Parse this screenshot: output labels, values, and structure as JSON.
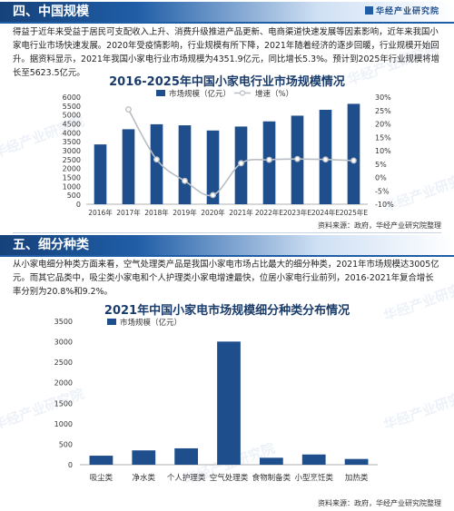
{
  "section4": {
    "title": "四、中国规模",
    "brand": "华经产业研究院",
    "paragraph": "得益于近年来受益于居民可支配收入上升、消费升级推进产品更新、电商渠道快速发展等因素影响，近年来我国小家电行业市场快速发展。2020年受疫情影响，行业规模有所下降，2021年随着经济的逐步回暖，行业规模开始回升。据资料显示，2021年我国小家电行业市场规模为4351.9亿元，同比增长5.3%。预计到2025年行业规模将增长至5623.5亿元。"
  },
  "section5": {
    "title": "五、细分种类",
    "paragraph": "从小家电细分种类方面来看，空气处理类产品是我国小家电市场占比最大的细分种类，2021年市场规模达3005亿元。而其它品类中，吸尘类小家电和个人护理类小家电增速最快，位居小家电行业前列，2016-2021年复合增长率分别为20.8%和9.2%。"
  },
  "source_text": "资料来源：政府，华经产业研究院整理",
  "watermark": "华经产业研究院",
  "colors": {
    "primary": "#1f4e8c",
    "bar": "#1f4e8c",
    "line": "#b9bdc4"
  },
  "chart_data": [
    {
      "type": "bar",
      "title": "2016-2025年中国小家电行业市场规模情况",
      "categories": [
        "2016年",
        "2017年",
        "2018年",
        "2019年",
        "2020年",
        "2021年",
        "2022年E",
        "2023年E",
        "2024年E",
        "2025年E"
      ],
      "series": [
        {
          "name": "市场规模（亿元）",
          "axis": "left",
          "type": "bar",
          "values": [
            3350,
            4200,
            4480,
            4420,
            4130,
            4351.9,
            4640,
            4960,
            5290,
            5623.5
          ]
        },
        {
          "name": "增速（%）",
          "axis": "right",
          "type": "line",
          "values": [
            null,
            25.4,
            6.7,
            -1.3,
            -6.6,
            5.3,
            6.6,
            6.9,
            6.7,
            6.3
          ]
        }
      ],
      "ylim_left": [
        0,
        6000
      ],
      "yticks_left": [
        0,
        500,
        1000,
        1500,
        2000,
        2500,
        3000,
        3500,
        4000,
        4500,
        5000,
        5500,
        6000
      ],
      "ylim_right": [
        -10,
        30
      ],
      "yticks_right": [
        "-10%",
        "-5%",
        "0%",
        "5%",
        "10%",
        "15%",
        "20%",
        "25%",
        "30%"
      ],
      "legend": "top-left"
    },
    {
      "type": "bar",
      "title": "2021年中国小家电市场规模细分种类分布情况",
      "categories": [
        "吸尘类",
        "净水类",
        "个人护理类",
        "空气处理类",
        "食物制备类",
        "小型烹饪类",
        "加热类"
      ],
      "series": [
        {
          "name": "市场规模（亿元）",
          "values": [
            220,
            350,
            400,
            3005,
            170,
            250,
            140
          ]
        }
      ],
      "ylim": [
        0,
        3500
      ],
      "yticks": [
        0,
        500,
        1000,
        1500,
        2000,
        2500,
        3000,
        3500
      ],
      "legend": "top-left"
    }
  ]
}
